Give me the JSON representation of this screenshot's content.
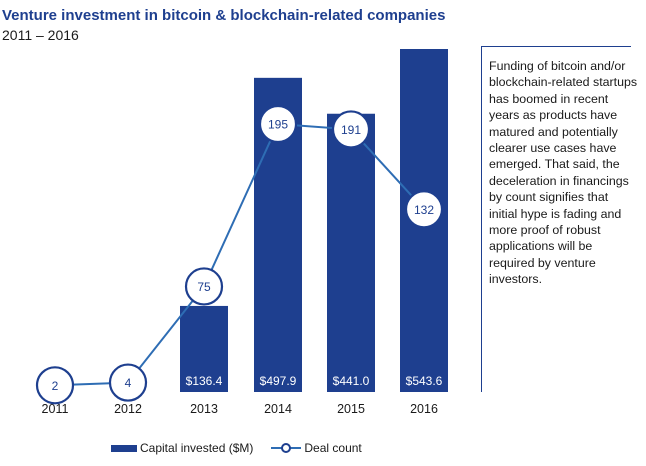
{
  "title": "Venture investment in bitcoin & blockchain-related companies",
  "subtitle": "2011 – 2016",
  "note": "Funding of bitcoin and/or blockchain-related startups has boomed in recent years as products have matured and potentially clearer use cases have emerged. That said, the deceleration in financings by count signifies that initial hype is fading and more proof of robust applications will be required by venture investors.",
  "legend": {
    "bar_label": "Capital invested ($M)",
    "line_label": "Deal count"
  },
  "colors": {
    "bar": "#1e3f8f",
    "line": "#2e6db4",
    "marker_stroke": "#1e3f8f"
  },
  "chart_data": {
    "type": "bar",
    "categories": [
      "2011",
      "2012",
      "2013",
      "2014",
      "2015",
      "2016"
    ],
    "series": [
      {
        "name": "Capital invested ($M)",
        "type": "bar",
        "values": [
          null,
          null,
          136.4,
          497.9,
          441.0,
          543.6
        ],
        "labels": [
          "",
          "",
          "$136.4",
          "$497.9",
          "$441.0",
          "$543.6"
        ]
      },
      {
        "name": "Deal count",
        "type": "line",
        "values": [
          2,
          4,
          75,
          195,
          191,
          132
        ],
        "labels": [
          "2",
          "4",
          "75",
          "195",
          "191",
          "132"
        ]
      }
    ],
    "title": "Venture investment in bitcoin & blockchain-related companies",
    "subtitle": "2011 – 2016",
    "xlabel": "",
    "ylabel": "",
    "bar_ylim": [
      0,
      543.6
    ],
    "line_ylim": [
      0,
      195
    ],
    "grid": false,
    "legend_position": "bottom"
  }
}
